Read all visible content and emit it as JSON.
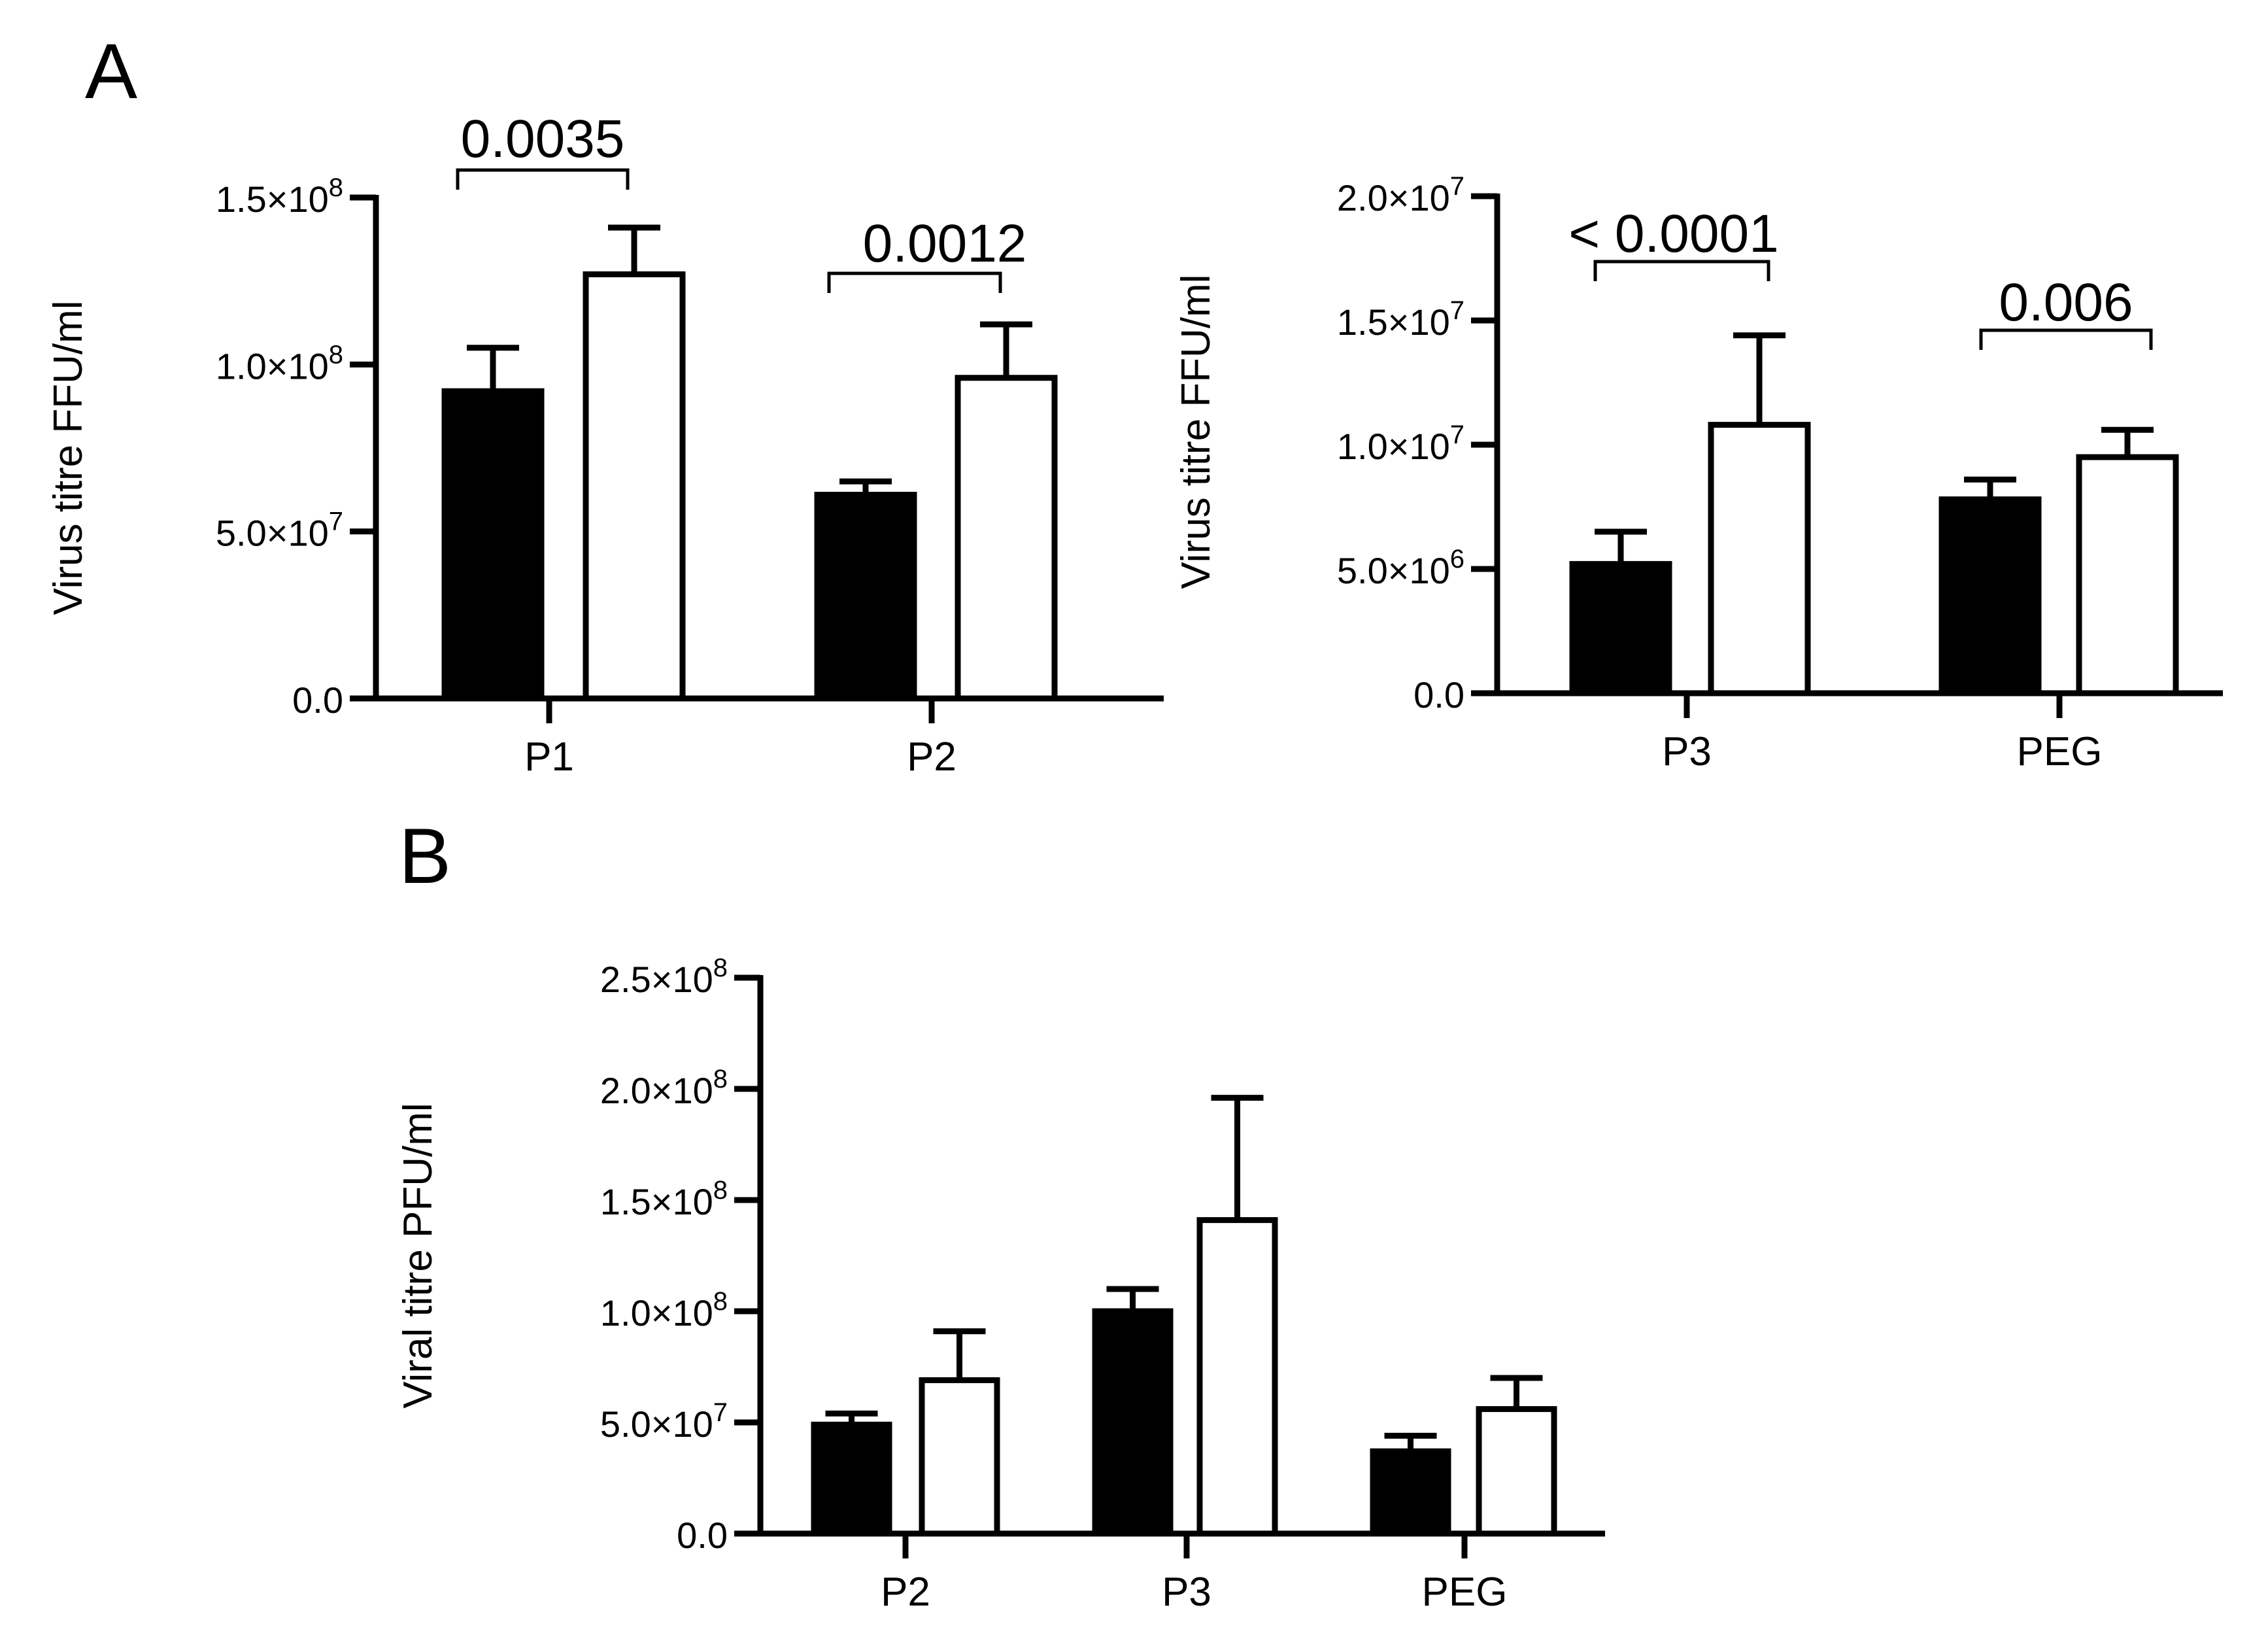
{
  "figure": {
    "panel_a_letter": "A",
    "panel_b_letter": "B"
  },
  "chart_data": [
    {
      "id": "a1",
      "type": "bar",
      "panel": "A",
      "title": "",
      "xlabel": "",
      "ylabel": "Virus titre FFU/ml",
      "ylim": [
        0,
        150000000
      ],
      "y_ticks": [
        {
          "value": 0,
          "label": "0.0",
          "exp": ""
        },
        {
          "value": 50000000,
          "label": "5.0×10",
          "exp": "7"
        },
        {
          "value": 100000000,
          "label": "1.0×10",
          "exp": "8"
        },
        {
          "value": 150000000,
          "label": "1.5×10",
          "exp": "8"
        }
      ],
      "categories": [
        "P1",
        "P2"
      ],
      "series": [
        {
          "name": "filled",
          "color": "#000000",
          "values": [
            92000000,
            61000000
          ],
          "errors": [
            13000000,
            4000000
          ]
        },
        {
          "name": "open",
          "color": "#ffffff",
          "values": [
            127000000,
            96000000
          ],
          "errors": [
            14000000,
            16000000
          ]
        }
      ],
      "annotations": [
        {
          "category": "P1",
          "text": "0.0035"
        },
        {
          "category": "P2",
          "text": "0.0012"
        }
      ]
    },
    {
      "id": "a2",
      "type": "bar",
      "panel": "A",
      "title": "",
      "xlabel": "",
      "ylabel": "Virus titre FFU/ml",
      "ylim": [
        0,
        20000000
      ],
      "y_ticks": [
        {
          "value": 0,
          "label": "0.0",
          "exp": ""
        },
        {
          "value": 5000000,
          "label": "5.0×10",
          "exp": "6"
        },
        {
          "value": 10000000,
          "label": "1.0×10",
          "exp": "7"
        },
        {
          "value": 15000000,
          "label": "1.5×10",
          "exp": "7"
        },
        {
          "value": 20000000,
          "label": "2.0×10",
          "exp": "7"
        }
      ],
      "categories": [
        "P3",
        "PEG"
      ],
      "series": [
        {
          "name": "filled",
          "color": "#000000",
          "values": [
            5200000,
            7800000
          ],
          "errors": [
            1300000,
            800000
          ]
        },
        {
          "name": "open",
          "color": "#ffffff",
          "values": [
            10800000,
            9500000
          ],
          "errors": [
            3600000,
            1100000
          ]
        }
      ],
      "annotations": [
        {
          "category": "P3",
          "text": "< 0.0001"
        },
        {
          "category": "PEG",
          "text": "0.006"
        }
      ]
    },
    {
      "id": "b",
      "type": "bar",
      "panel": "B",
      "title": "",
      "xlabel": "",
      "ylabel": "Viral titre PFU/ml",
      "ylim": [
        0,
        250000000
      ],
      "y_ticks": [
        {
          "value": 0,
          "label": "0.0",
          "exp": ""
        },
        {
          "value": 50000000,
          "label": "5.0×10",
          "exp": "7"
        },
        {
          "value": 100000000,
          "label": "1.0×10",
          "exp": "8"
        },
        {
          "value": 150000000,
          "label": "1.5×10",
          "exp": "8"
        },
        {
          "value": 200000000,
          "label": "2.0×10",
          "exp": "8"
        },
        {
          "value": 250000000,
          "label": "2.5×10",
          "exp": "8"
        }
      ],
      "categories": [
        "P2",
        "P3",
        "PEG"
      ],
      "series": [
        {
          "name": "filled",
          "color": "#000000",
          "values": [
            49000000,
            100000000,
            37000000
          ],
          "errors": [
            5000000,
            10000000,
            7000000
          ]
        },
        {
          "name": "open",
          "color": "#ffffff",
          "values": [
            69000000,
            141000000,
            56000000
          ],
          "errors": [
            22000000,
            55000000,
            14000000
          ]
        }
      ],
      "annotations": []
    }
  ]
}
